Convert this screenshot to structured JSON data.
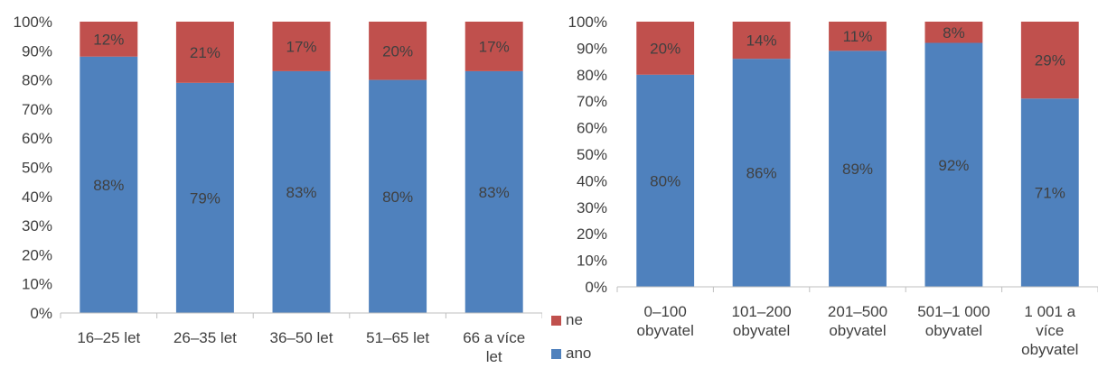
{
  "chart_data": [
    {
      "type": "bar",
      "stacked": true,
      "normalized": true,
      "categories": [
        "16–25 let",
        "26–35 let",
        "36–50 let",
        "51–65 let",
        "66 a více let"
      ],
      "series": [
        {
          "name": "ano",
          "values": [
            88,
            79,
            83,
            80,
            83
          ],
          "color": "#4F81BD"
        },
        {
          "name": "ne",
          "values": [
            12,
            21,
            17,
            20,
            17
          ],
          "color": "#C0504D"
        }
      ],
      "data_labels": {
        "ano": [
          "88%",
          "79%",
          "83%",
          "80%",
          "83%"
        ],
        "ne": [
          "12%",
          "21%",
          "17%",
          "20%",
          "17%"
        ]
      },
      "ylim": [
        0,
        100
      ],
      "yticks": [
        "0%",
        "10%",
        "20%",
        "30%",
        "40%",
        "50%",
        "60%",
        "70%",
        "80%",
        "90%",
        "100%"
      ],
      "grid": false,
      "legend": false
    },
    {
      "type": "bar",
      "stacked": true,
      "normalized": true,
      "categories": [
        "0–100 obyvatel",
        "101–200 obyvatel",
        "201–500 obyvatel",
        "501–1 000 obyvatel",
        "1 001 a více obyvatel"
      ],
      "series": [
        {
          "name": "ano",
          "values": [
            80,
            86,
            89,
            92,
            71
          ],
          "color": "#4F81BD"
        },
        {
          "name": "ne",
          "values": [
            20,
            14,
            11,
            8,
            29
          ],
          "color": "#C0504D"
        }
      ],
      "data_labels": {
        "ano": [
          "80%",
          "86%",
          "89%",
          "92%",
          "71%"
        ],
        "ne": [
          "20%",
          "14%",
          "11%",
          "8%",
          "29%"
        ]
      },
      "ylim": [
        0,
        100
      ],
      "yticks": [
        "0%",
        "10%",
        "20%",
        "30%",
        "40%",
        "50%",
        "60%",
        "70%",
        "80%",
        "90%",
        "100%"
      ],
      "grid": false,
      "legend": {
        "position": "left-bottom",
        "entries": [
          "ne",
          "ano"
        ]
      }
    }
  ]
}
